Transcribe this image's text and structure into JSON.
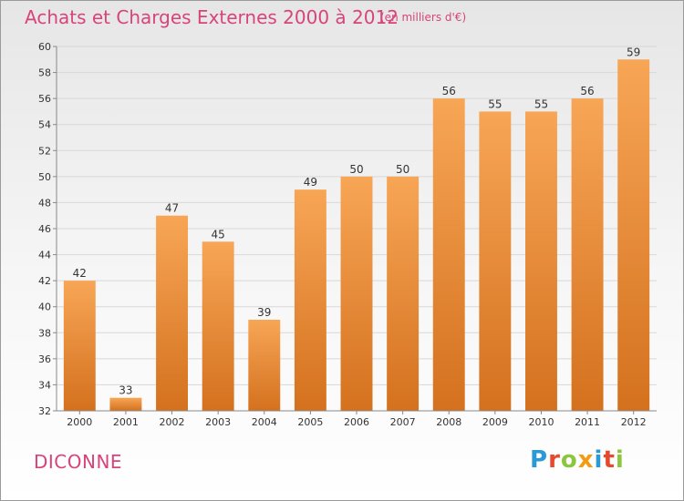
{
  "header": {
    "title": "Achats et Charges Externes 2000 à 2012",
    "subtitle": "(en milliers d'€)"
  },
  "footer": {
    "city": "DICONNE",
    "brand_letters": [
      "P",
      "r",
      "o",
      "x",
      "i",
      "t",
      "i"
    ],
    "brand_colors": [
      "#2a9ad6",
      "#e64a2e",
      "#8cc63f",
      "#f39c12",
      "#2a9ad6",
      "#e64a2e",
      "#8cc63f"
    ]
  },
  "colors": {
    "bar_top": "#f7a656",
    "bar_bottom": "#d4711e",
    "grid": "#d8d8d8",
    "axis": "#888888"
  },
  "chart_data": {
    "type": "bar",
    "title": "Achats et Charges Externes 2000 à 2012",
    "ylabel": "en milliers d'€",
    "xlabel": "",
    "categories": [
      "2000",
      "2001",
      "2002",
      "2003",
      "2004",
      "2005",
      "2006",
      "2007",
      "2008",
      "2009",
      "2010",
      "2011",
      "2012"
    ],
    "values": [
      42,
      33,
      47,
      45,
      39,
      49,
      50,
      50,
      56,
      55,
      55,
      56,
      59
    ],
    "ylim": [
      32,
      60
    ],
    "yticks": [
      32,
      34,
      36,
      38,
      40,
      42,
      44,
      46,
      48,
      50,
      52,
      54,
      56,
      58,
      60
    ],
    "grid": true
  }
}
